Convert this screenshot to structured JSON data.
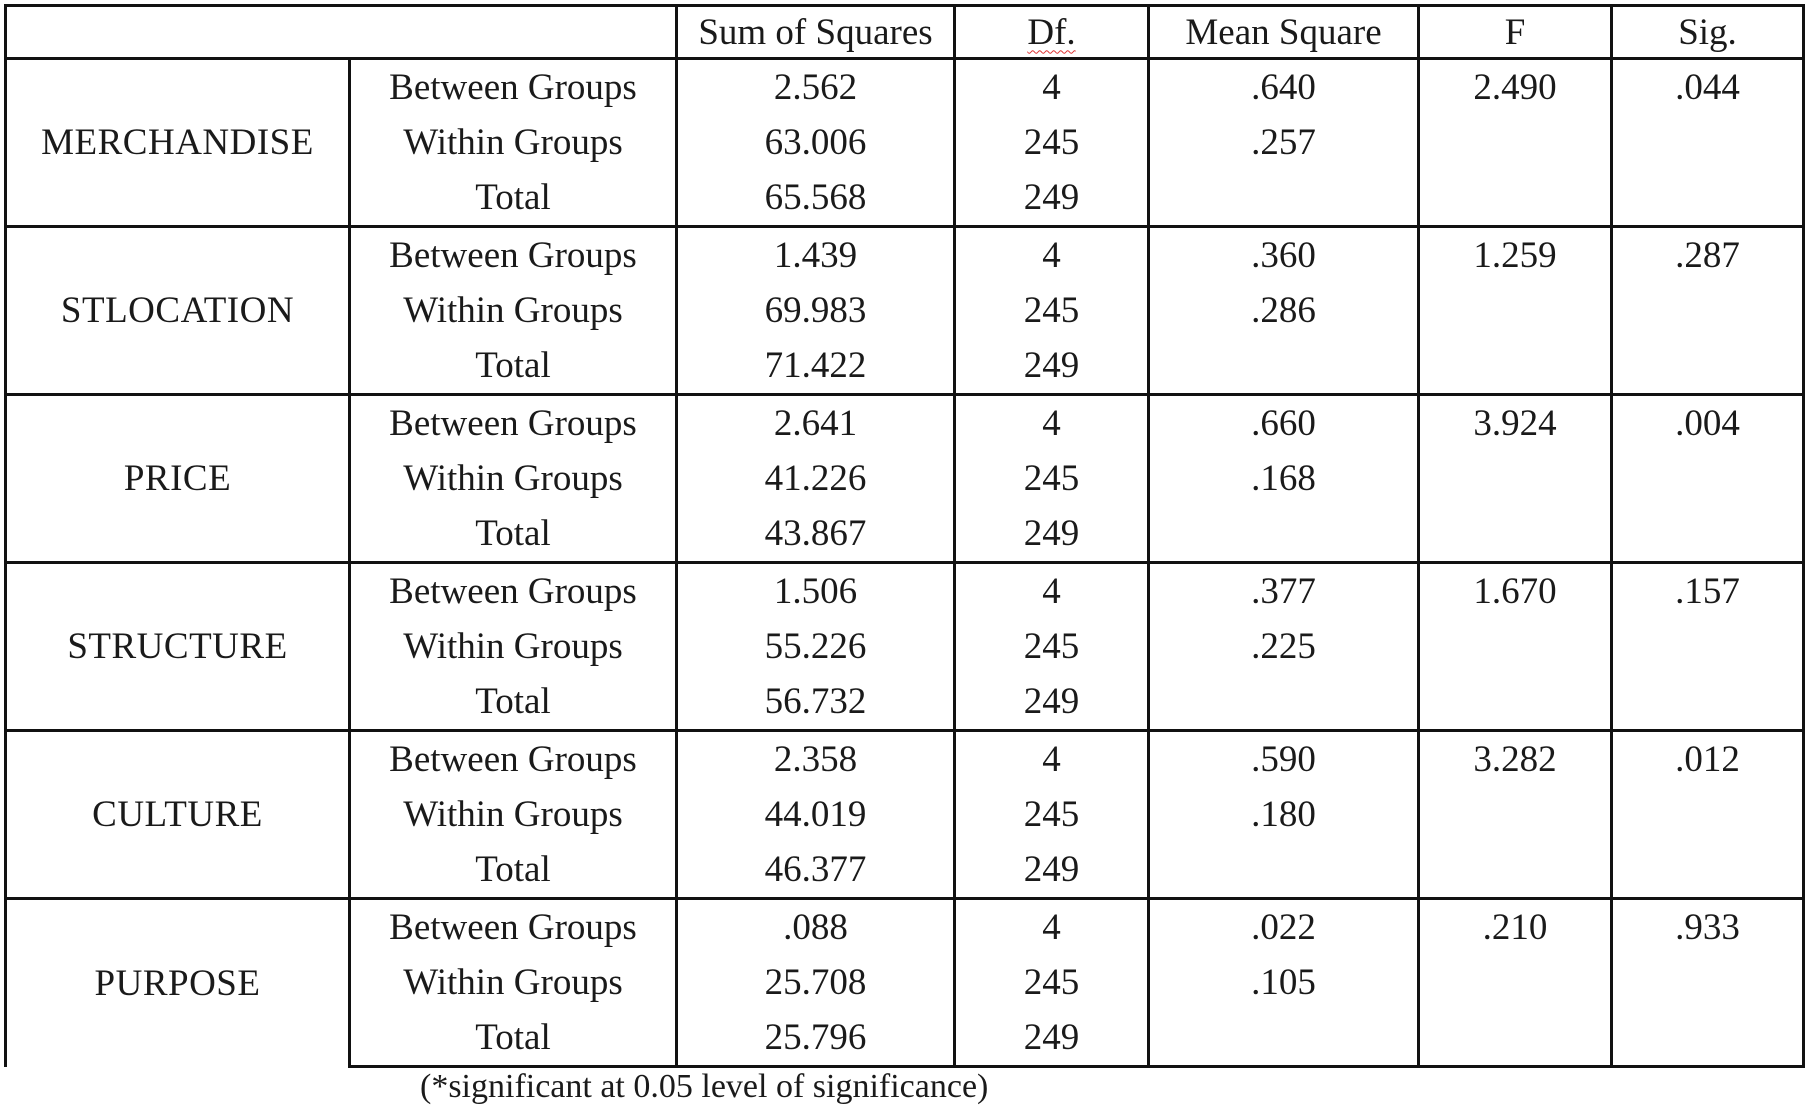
{
  "table": {
    "headers": {
      "blank": "",
      "sum_of_squares": "Sum of Squares",
      "df": "Df.",
      "mean_square": "Mean Square",
      "f": "F",
      "sig": "Sig."
    },
    "groups": [
      {
        "variable": "MERCHANDISE",
        "rows": [
          {
            "source": "Between Groups",
            "ss": "2.562",
            "df": "4",
            "ms": ".640",
            "f": "2.490",
            "sig": ".044"
          },
          {
            "source": "Within Groups",
            "ss": "63.006",
            "df": "245",
            "ms": ".257",
            "f": "",
            "sig": ""
          },
          {
            "source": "Total",
            "ss": "65.568",
            "df": "249",
            "ms": "",
            "f": "",
            "sig": ""
          }
        ]
      },
      {
        "variable": "STLOCATION",
        "rows": [
          {
            "source": "Between Groups",
            "ss": "1.439",
            "df": "4",
            "ms": ".360",
            "f": "1.259",
            "sig": ".287"
          },
          {
            "source": "Within Groups",
            "ss": "69.983",
            "df": "245",
            "ms": ".286",
            "f": "",
            "sig": ""
          },
          {
            "source": "Total",
            "ss": "71.422",
            "df": "249",
            "ms": "",
            "f": "",
            "sig": ""
          }
        ]
      },
      {
        "variable": "PRICE",
        "rows": [
          {
            "source": "Between Groups",
            "ss": "2.641",
            "df": "4",
            "ms": ".660",
            "f": "3.924",
            "sig": ".004"
          },
          {
            "source": "Within Groups",
            "ss": "41.226",
            "df": "245",
            "ms": ".168",
            "f": "",
            "sig": ""
          },
          {
            "source": "Total",
            "ss": "43.867",
            "df": "249",
            "ms": "",
            "f": "",
            "sig": ""
          }
        ]
      },
      {
        "variable": "STRUCTURE",
        "rows": [
          {
            "source": "Between Groups",
            "ss": "1.506",
            "df": "4",
            "ms": ".377",
            "f": "1.670",
            "sig": ".157"
          },
          {
            "source": "Within Groups",
            "ss": "55.226",
            "df": "245",
            "ms": ".225",
            "f": "",
            "sig": ""
          },
          {
            "source": "Total",
            "ss": "56.732",
            "df": "249",
            "ms": "",
            "f": "",
            "sig": ""
          }
        ]
      },
      {
        "variable": "CULTURE",
        "rows": [
          {
            "source": "Between Groups",
            "ss": "2.358",
            "df": "4",
            "ms": ".590",
            "f": "3.282",
            "sig": ".012"
          },
          {
            "source": "Within Groups",
            "ss": "44.019",
            "df": "245",
            "ms": ".180",
            "f": "",
            "sig": ""
          },
          {
            "source": "Total",
            "ss": "46.377",
            "df": "249",
            "ms": "",
            "f": "",
            "sig": ""
          }
        ]
      },
      {
        "variable": "PURPOSE",
        "rows": [
          {
            "source": "Between Groups",
            "ss": ".088",
            "df": "4",
            "ms": ".022",
            "f": ".210",
            "sig": ".933"
          },
          {
            "source": "Within Groups",
            "ss": "25.708",
            "df": "245",
            "ms": ".105",
            "f": "",
            "sig": ""
          },
          {
            "source": "Total",
            "ss": "25.796",
            "df": "249",
            "ms": "",
            "f": "",
            "sig": ""
          }
        ]
      }
    ]
  },
  "footnote": "(*significant at 0.05 level of significance)"
}
